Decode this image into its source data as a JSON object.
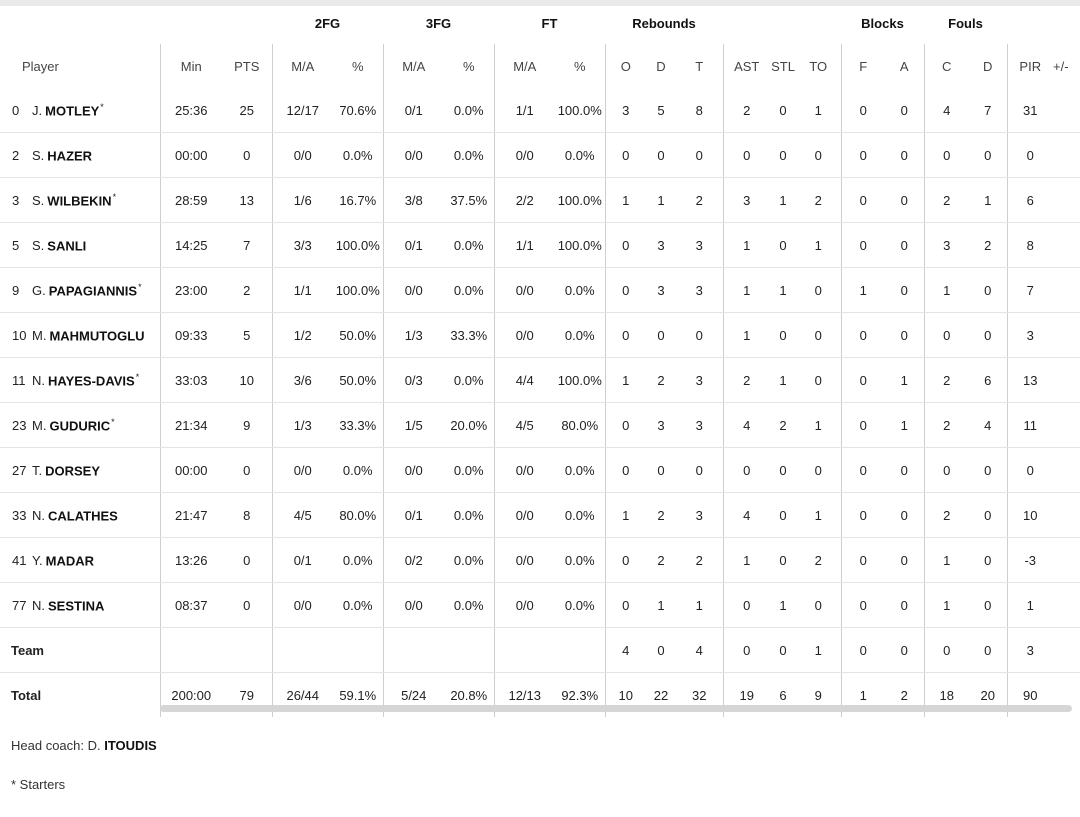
{
  "group_headers": {
    "fg2": "2FG",
    "fg3": "3FG",
    "ft": "FT",
    "rebounds": "Rebounds",
    "blocks": "Blocks",
    "fouls": "Fouls"
  },
  "columns": {
    "player": "Player",
    "min": "Min",
    "pts": "PTS",
    "fg2_ma": "M/A",
    "fg2_pct": "%",
    "fg3_ma": "M/A",
    "fg3_pct": "%",
    "ft_ma": "M/A",
    "ft_pct": "%",
    "reb_o": "O",
    "reb_d": "D",
    "reb_t": "T",
    "ast": "AST",
    "stl": "STL",
    "to": "TO",
    "blk_f": "F",
    "blk_a": "A",
    "foul_c": "C",
    "foul_d": "D",
    "pir": "PIR",
    "pm": "+/-"
  },
  "players": [
    {
      "num": "0",
      "initial": "J.",
      "last": "MOTLEY",
      "starter": "*",
      "min": "25:36",
      "pts": "25",
      "fg2_ma": "12/17",
      "fg2_pct": "70.6%",
      "fg3_ma": "0/1",
      "fg3_pct": "0.0%",
      "ft_ma": "1/1",
      "ft_pct": "100.0%",
      "o": "3",
      "d": "5",
      "t": "8",
      "ast": "2",
      "stl": "0",
      "to": "1",
      "bf": "0",
      "ba": "0",
      "fc": "4",
      "fd": "7",
      "pir": "31",
      "pm": ""
    },
    {
      "num": "2",
      "initial": "S.",
      "last": "HAZER",
      "starter": "",
      "min": "00:00",
      "pts": "0",
      "fg2_ma": "0/0",
      "fg2_pct": "0.0%",
      "fg3_ma": "0/0",
      "fg3_pct": "0.0%",
      "ft_ma": "0/0",
      "ft_pct": "0.0%",
      "o": "0",
      "d": "0",
      "t": "0",
      "ast": "0",
      "stl": "0",
      "to": "0",
      "bf": "0",
      "ba": "0",
      "fc": "0",
      "fd": "0",
      "pir": "0",
      "pm": ""
    },
    {
      "num": "3",
      "initial": "S.",
      "last": "WILBEKIN",
      "starter": "*",
      "min": "28:59",
      "pts": "13",
      "fg2_ma": "1/6",
      "fg2_pct": "16.7%",
      "fg3_ma": "3/8",
      "fg3_pct": "37.5%",
      "ft_ma": "2/2",
      "ft_pct": "100.0%",
      "o": "1",
      "d": "1",
      "t": "2",
      "ast": "3",
      "stl": "1",
      "to": "2",
      "bf": "0",
      "ba": "0",
      "fc": "2",
      "fd": "1",
      "pir": "6",
      "pm": ""
    },
    {
      "num": "5",
      "initial": "S.",
      "last": "SANLI",
      "starter": "",
      "min": "14:25",
      "pts": "7",
      "fg2_ma": "3/3",
      "fg2_pct": "100.0%",
      "fg3_ma": "0/1",
      "fg3_pct": "0.0%",
      "ft_ma": "1/1",
      "ft_pct": "100.0%",
      "o": "0",
      "d": "3",
      "t": "3",
      "ast": "1",
      "stl": "0",
      "to": "1",
      "bf": "0",
      "ba": "0",
      "fc": "3",
      "fd": "2",
      "pir": "8",
      "pm": ""
    },
    {
      "num": "9",
      "initial": "G.",
      "last": "PAPAGIANNIS",
      "starter": "*",
      "min": "23:00",
      "pts": "2",
      "fg2_ma": "1/1",
      "fg2_pct": "100.0%",
      "fg3_ma": "0/0",
      "fg3_pct": "0.0%",
      "ft_ma": "0/0",
      "ft_pct": "0.0%",
      "o": "0",
      "d": "3",
      "t": "3",
      "ast": "1",
      "stl": "1",
      "to": "0",
      "bf": "1",
      "ba": "0",
      "fc": "1",
      "fd": "0",
      "pir": "7",
      "pm": ""
    },
    {
      "num": "10",
      "initial": "M.",
      "last": "MAHMUTOGLU",
      "starter": "",
      "min": "09:33",
      "pts": "5",
      "fg2_ma": "1/2",
      "fg2_pct": "50.0%",
      "fg3_ma": "1/3",
      "fg3_pct": "33.3%",
      "ft_ma": "0/0",
      "ft_pct": "0.0%",
      "o": "0",
      "d": "0",
      "t": "0",
      "ast": "1",
      "stl": "0",
      "to": "0",
      "bf": "0",
      "ba": "0",
      "fc": "0",
      "fd": "0",
      "pir": "3",
      "pm": ""
    },
    {
      "num": "11",
      "initial": "N.",
      "last": "HAYES-DAVIS",
      "starter": "*",
      "min": "33:03",
      "pts": "10",
      "fg2_ma": "3/6",
      "fg2_pct": "50.0%",
      "fg3_ma": "0/3",
      "fg3_pct": "0.0%",
      "ft_ma": "4/4",
      "ft_pct": "100.0%",
      "o": "1",
      "d": "2",
      "t": "3",
      "ast": "2",
      "stl": "1",
      "to": "0",
      "bf": "0",
      "ba": "1",
      "fc": "2",
      "fd": "6",
      "pir": "13",
      "pm": ""
    },
    {
      "num": "23",
      "initial": "M.",
      "last": "GUDURIC",
      "starter": "*",
      "min": "21:34",
      "pts": "9",
      "fg2_ma": "1/3",
      "fg2_pct": "33.3%",
      "fg3_ma": "1/5",
      "fg3_pct": "20.0%",
      "ft_ma": "4/5",
      "ft_pct": "80.0%",
      "o": "0",
      "d": "3",
      "t": "3",
      "ast": "4",
      "stl": "2",
      "to": "1",
      "bf": "0",
      "ba": "1",
      "fc": "2",
      "fd": "4",
      "pir": "11",
      "pm": ""
    },
    {
      "num": "27",
      "initial": "T.",
      "last": "DORSEY",
      "starter": "",
      "min": "00:00",
      "pts": "0",
      "fg2_ma": "0/0",
      "fg2_pct": "0.0%",
      "fg3_ma": "0/0",
      "fg3_pct": "0.0%",
      "ft_ma": "0/0",
      "ft_pct": "0.0%",
      "o": "0",
      "d": "0",
      "t": "0",
      "ast": "0",
      "stl": "0",
      "to": "0",
      "bf": "0",
      "ba": "0",
      "fc": "0",
      "fd": "0",
      "pir": "0",
      "pm": ""
    },
    {
      "num": "33",
      "initial": "N.",
      "last": "CALATHES",
      "starter": "",
      "min": "21:47",
      "pts": "8",
      "fg2_ma": "4/5",
      "fg2_pct": "80.0%",
      "fg3_ma": "0/1",
      "fg3_pct": "0.0%",
      "ft_ma": "0/0",
      "ft_pct": "0.0%",
      "o": "1",
      "d": "2",
      "t": "3",
      "ast": "4",
      "stl": "0",
      "to": "1",
      "bf": "0",
      "ba": "0",
      "fc": "2",
      "fd": "0",
      "pir": "10",
      "pm": ""
    },
    {
      "num": "41",
      "initial": "Y.",
      "last": "MADAR",
      "starter": "",
      "min": "13:26",
      "pts": "0",
      "fg2_ma": "0/1",
      "fg2_pct": "0.0%",
      "fg3_ma": "0/2",
      "fg3_pct": "0.0%",
      "ft_ma": "0/0",
      "ft_pct": "0.0%",
      "o": "0",
      "d": "2",
      "t": "2",
      "ast": "1",
      "stl": "0",
      "to": "2",
      "bf": "0",
      "ba": "0",
      "fc": "1",
      "fd": "0",
      "pir": "-3",
      "pm": ""
    },
    {
      "num": "77",
      "initial": "N.",
      "last": "SESTINA",
      "starter": "",
      "min": "08:37",
      "pts": "0",
      "fg2_ma": "0/0",
      "fg2_pct": "0.0%",
      "fg3_ma": "0/0",
      "fg3_pct": "0.0%",
      "ft_ma": "0/0",
      "ft_pct": "0.0%",
      "o": "0",
      "d": "1",
      "t": "1",
      "ast": "0",
      "stl": "1",
      "to": "0",
      "bf": "0",
      "ba": "0",
      "fc": "1",
      "fd": "0",
      "pir": "1",
      "pm": ""
    }
  ],
  "team_row": {
    "label": "Team",
    "min": "",
    "pts": "",
    "fg2_ma": "",
    "fg2_pct": "",
    "fg3_ma": "",
    "fg3_pct": "",
    "ft_ma": "",
    "ft_pct": "",
    "o": "4",
    "d": "0",
    "t": "4",
    "ast": "0",
    "stl": "0",
    "to": "1",
    "bf": "0",
    "ba": "0",
    "fc": "0",
    "fd": "0",
    "pir": "3",
    "pm": ""
  },
  "total_row": {
    "label": "Total",
    "min": "200:00",
    "pts": "79",
    "fg2_ma": "26/44",
    "fg2_pct": "59.1%",
    "fg3_ma": "5/24",
    "fg3_pct": "20.8%",
    "ft_ma": "12/13",
    "ft_pct": "92.3%",
    "o": "10",
    "d": "22",
    "t": "32",
    "ast": "19",
    "stl": "6",
    "to": "9",
    "bf": "1",
    "ba": "2",
    "fc": "18",
    "fd": "20",
    "pir": "90",
    "pm": ""
  },
  "footer": {
    "coach_label": "Head coach: D.",
    "coach_name": "ITOUDIS",
    "starters_note": "* Starters"
  }
}
